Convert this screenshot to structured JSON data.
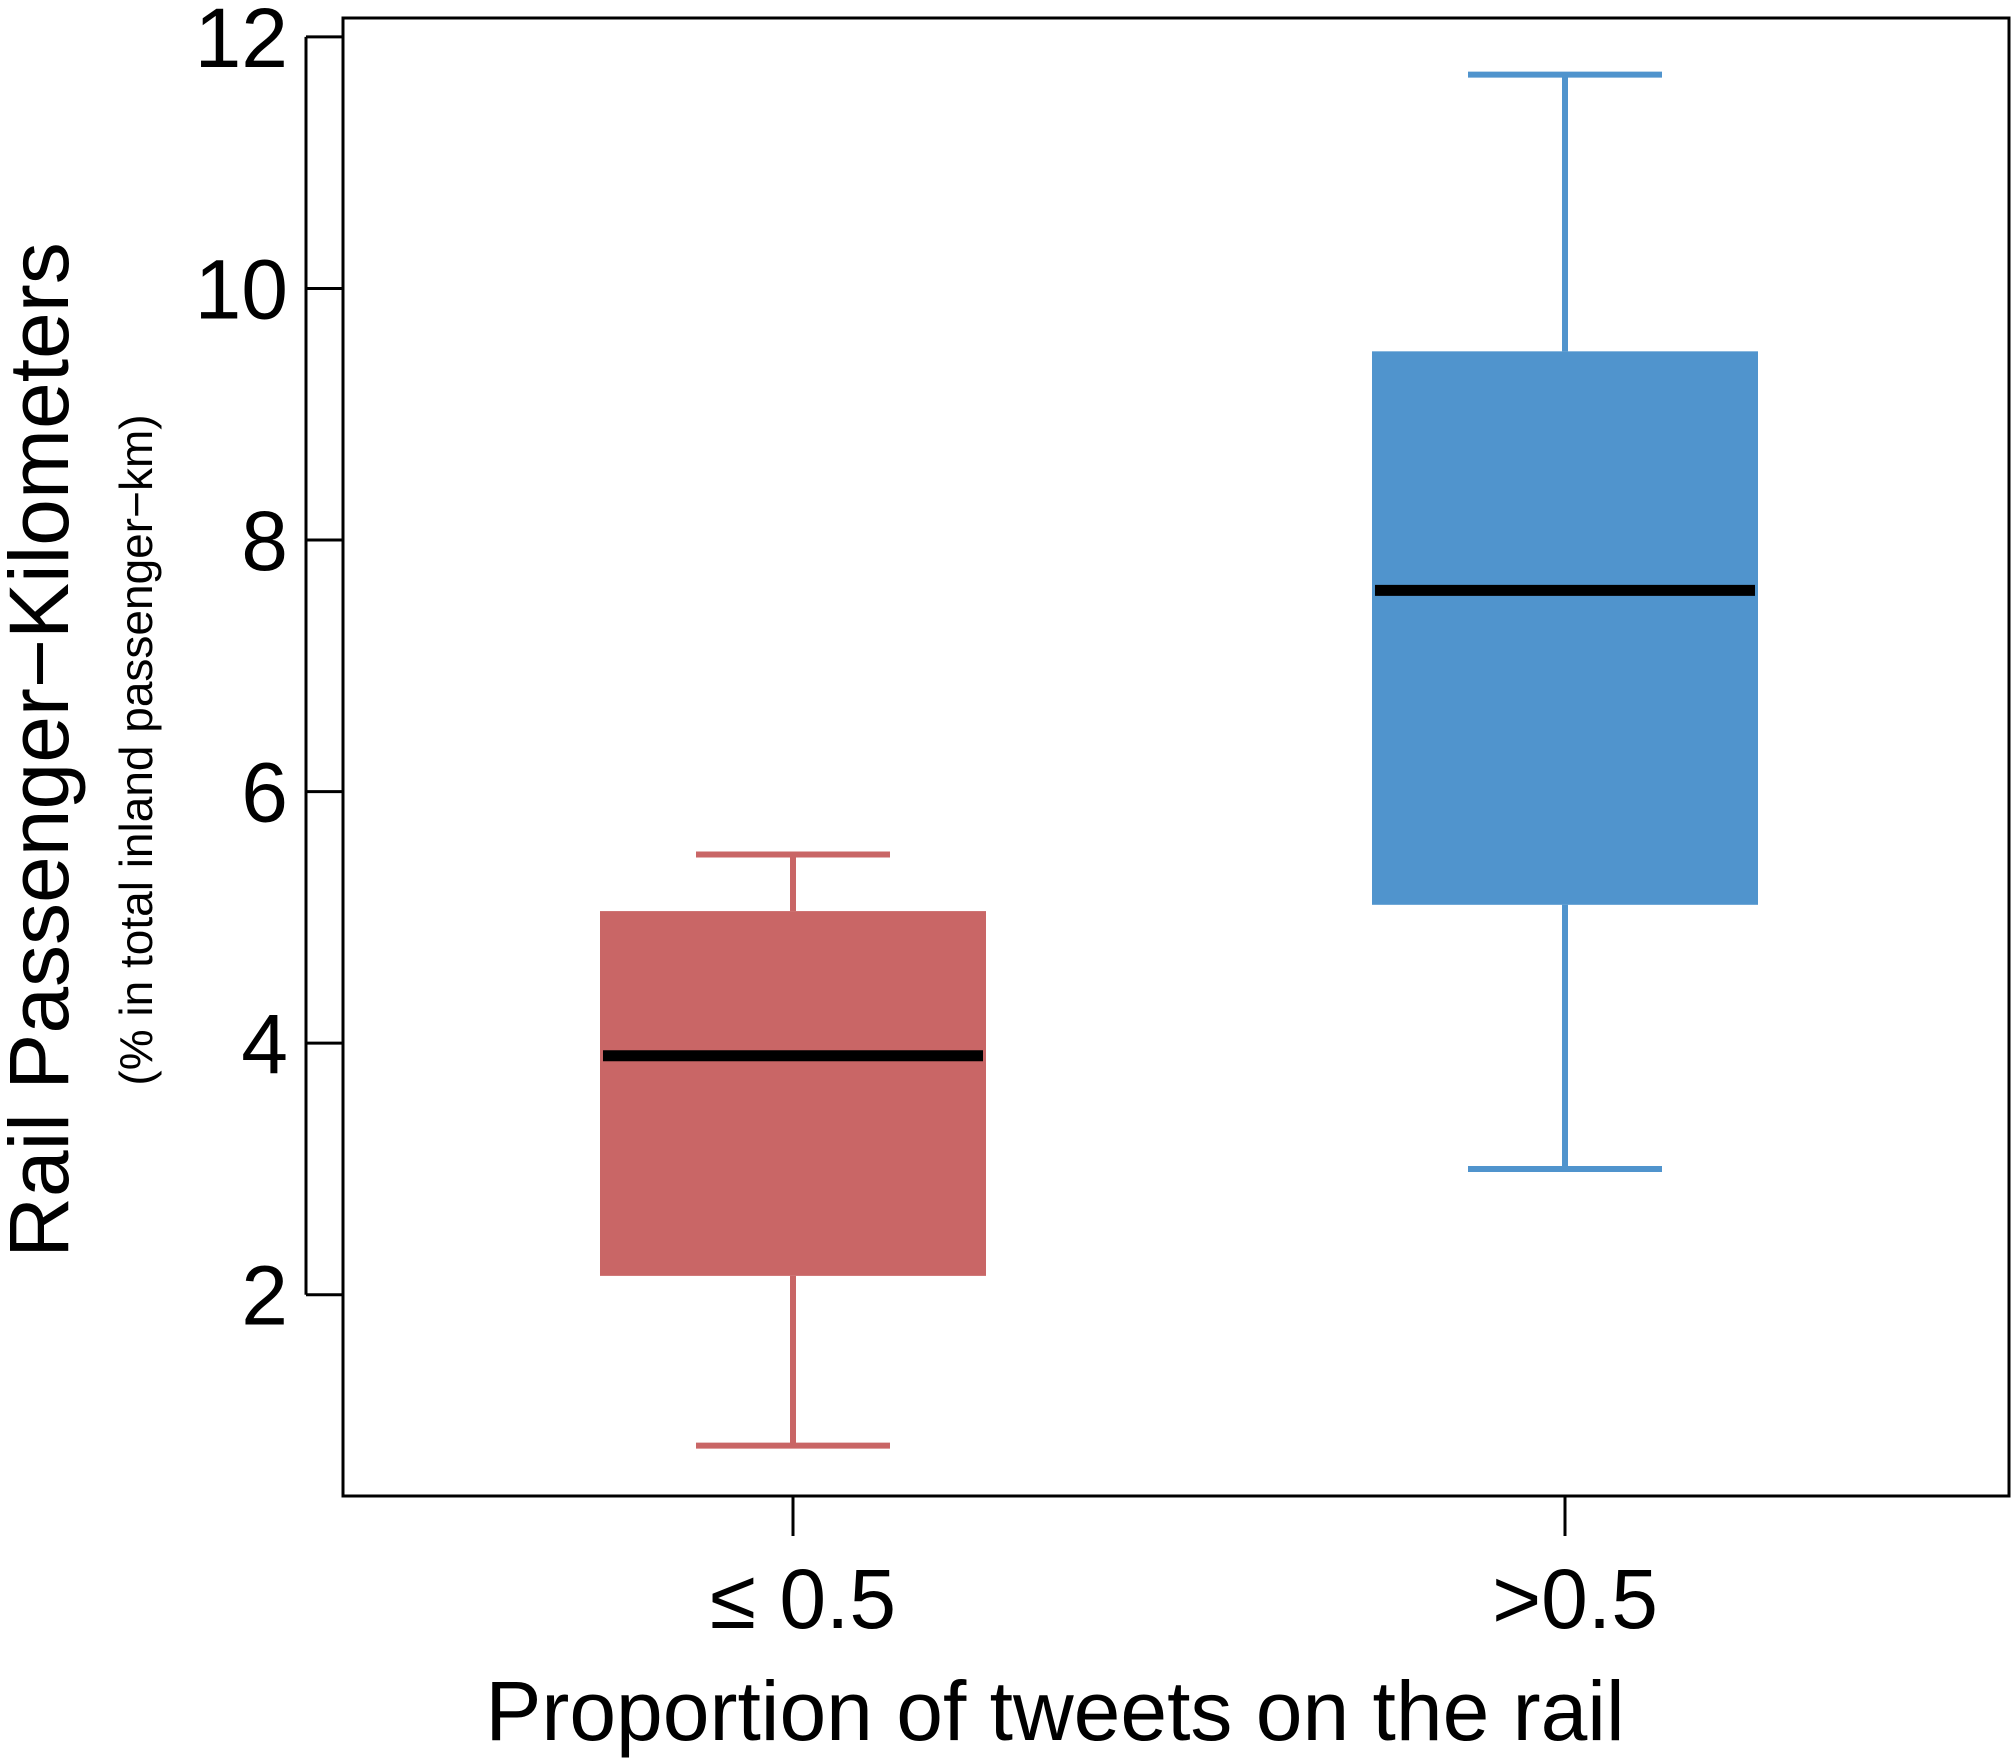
{
  "chart_data": {
    "type": "box",
    "xlabel": "Proportion of tweets on the rail",
    "ylabel": "Rail Passenger−Kilometers",
    "ylabel_sub": "(% in total inland passenger−km)",
    "ylim": [
      0.4,
      12.15
    ],
    "yticks": [
      2,
      4,
      6,
      8,
      10,
      12
    ],
    "ytick_labels": [
      "2",
      "4",
      "6",
      "8",
      "10",
      "12"
    ],
    "categories": [
      "≤ 0.5",
      ">0.5"
    ],
    "boxes": [
      {
        "category": "≤ 0.5",
        "whisker_low": 0.8,
        "q1": 2.15,
        "median": 3.9,
        "q3": 5.05,
        "whisker_high": 5.5,
        "color": "#c96666"
      },
      {
        "category": ">0.5",
        "whisker_low": 3.0,
        "q1": 5.1,
        "median": 7.6,
        "q3": 9.5,
        "whisker_high": 11.7,
        "color": "#5094cd"
      }
    ],
    "median_color": "#000000",
    "grid": false,
    "legend": "none"
  }
}
